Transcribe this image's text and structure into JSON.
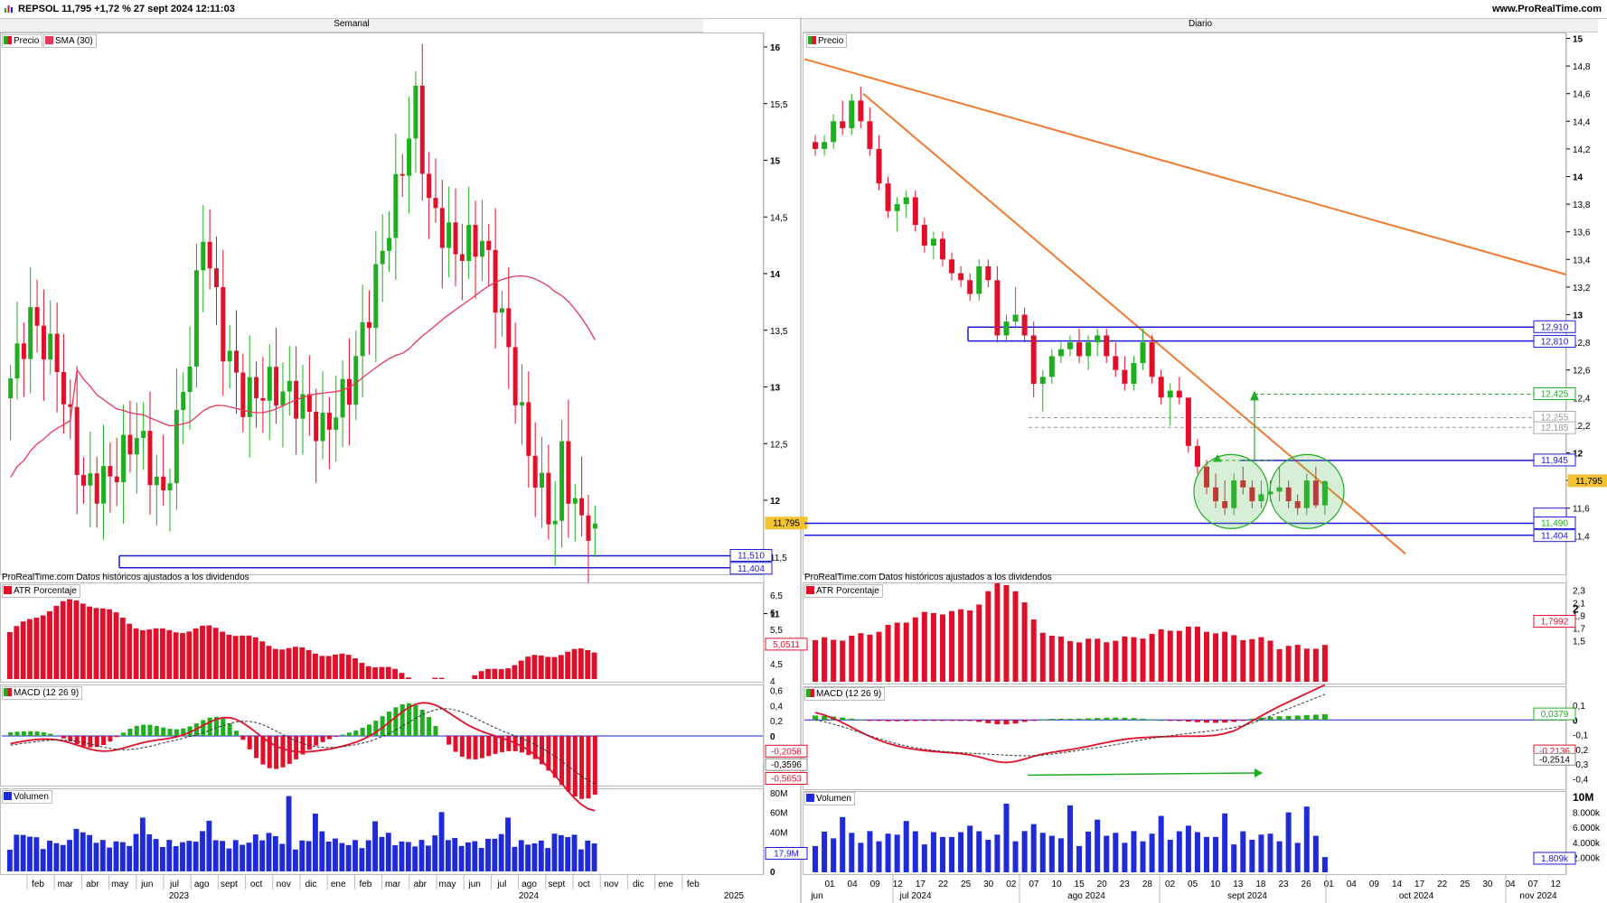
{
  "header": {
    "title": "REPSOL 11,795 +1,72 % 27 sept 2024 12:11:03",
    "brand": "www.ProRealTime.com"
  },
  "left": {
    "title": "Semanal",
    "legend": [
      "Precio",
      "SMA (30)"
    ],
    "source_note": "ProRealTime.com Datos históricos ajustados a los dividendos",
    "price_axis": [
      "16",
      "15,5",
      "15",
      "14,5",
      "14",
      "13,5",
      "13",
      "12,5",
      "12",
      "11,5",
      "11"
    ],
    "price_tags": {
      "last": "11,795",
      "s1": "11,510",
      "s2": "11,404"
    },
    "atr": {
      "label": "ATR Porcentaje",
      "axis": [
        "6,5",
        "6",
        "5,5",
        "5",
        "4,5",
        "4"
      ],
      "value": "5,0511"
    },
    "macd": {
      "label": "MACD (12 26 9)",
      "axis": [
        "0,6",
        "0,4",
        "0,2",
        "0",
        "-0,2",
        "-0,4"
      ],
      "values": [
        "-0,2058",
        "-0,3596",
        "-0,5653"
      ]
    },
    "volume": {
      "label": "Volumen",
      "axis": [
        "80M",
        "60M",
        "40M",
        "0"
      ],
      "value": "17,9M"
    },
    "x_labels": [
      "feb",
      "mar",
      "abr",
      "may",
      "jun",
      "jul",
      "ago",
      "sept",
      "oct",
      "nov",
      "dic",
      "ene",
      "feb",
      "mar",
      "abr",
      "may",
      "jun",
      "jul",
      "ago",
      "sept",
      "oct",
      "nov",
      "dic",
      "ene",
      "feb"
    ],
    "years": [
      "2023",
      "2024",
      "2025"
    ]
  },
  "right": {
    "title": "Diario",
    "legend": [
      "Precio"
    ],
    "source_note": "ProRealTime.com Datos históricos ajustados a los dividendos",
    "price_axis": [
      "15",
      "14,8",
      "14,6",
      "14,4",
      "14,2",
      "14",
      "13,8",
      "13,6",
      "13,4",
      "13,2",
      "13",
      "12,8",
      "12,6",
      "12,4",
      "12,2",
      "12",
      "11,8",
      "11,6",
      "11,4"
    ],
    "price_tags": {
      "r1": "12,910",
      "r2": "12,810",
      "t1": "12,425",
      "g1": "12,255",
      "g2": "12,185",
      "r3": "11,945",
      "last": "11,795",
      "s1": "11,490",
      "s2": "11,404"
    },
    "atr": {
      "label": "ATR Porcentaje",
      "axis": [
        "2,3",
        "2,1",
        "1,9",
        "1,7",
        "1,5",
        "2"
      ],
      "value": "1,7992"
    },
    "macd": {
      "label": "MACD (12 26 9)",
      "axis": [
        "0,1",
        "0",
        "-0,1",
        "-0,2",
        "-0,3",
        "-0,4"
      ],
      "values": [
        "0,0379",
        "-0,2136",
        "-0,2514"
      ]
    },
    "volume": {
      "label": "Volumen",
      "axis": [
        "10M",
        "8.000k",
        "6.000k",
        "4.000k",
        "2.000k"
      ],
      "value": "1,809k"
    },
    "x_labels": [
      "01",
      "04",
      "09",
      "12",
      "17",
      "22",
      "25",
      "30",
      "02",
      "07",
      "10",
      "15",
      "20",
      "23",
      "28",
      "02",
      "05",
      "10",
      "13",
      "18",
      "23",
      "26",
      "01",
      "04",
      "09",
      "14",
      "17",
      "22",
      "25",
      "30",
      "04",
      "07",
      "12"
    ],
    "months": [
      "jun",
      "jul 2024",
      "ago 2024",
      "sept 2024",
      "oct 2024",
      "nov 2024"
    ]
  },
  "colors": {
    "up": "#1fae1f",
    "down": "#e0102a",
    "sma": "#e8365a",
    "level": "#1a1ad6",
    "trend": "#f07a30",
    "macd_signal": "#333333",
    "volume": "#1f2ad8"
  },
  "chart_data": [
    {
      "type": "candlestick",
      "title": "Semanal",
      "series": [
        {
          "name": "Precio"
        },
        {
          "name": "SMA (30)"
        }
      ],
      "ylim": [
        11,
        16
      ],
      "levels": [
        11.51,
        11.404
      ],
      "last": 11.795,
      "ohlc_approx": [
        [
          12.95,
          13.5,
          12.8,
          13.3
        ],
        [
          13.3,
          13.9,
          13.2,
          13.8
        ],
        [
          13.8,
          13.9,
          13.0,
          13.1
        ],
        [
          13.1,
          13.4,
          12.0,
          12.3
        ],
        [
          12.3,
          12.8,
          11.9,
          12.6
        ],
        [
          12.6,
          13.2,
          12.4,
          13.0
        ],
        [
          13.0,
          13.2,
          12.0,
          12.2
        ],
        [
          12.2,
          12.3,
          11.7,
          11.9
        ],
        [
          11.9,
          12.4,
          11.8,
          12.3
        ],
        [
          12.3,
          12.5,
          11.9,
          12.0
        ],
        [
          12.0,
          12.6,
          11.8,
          12.5
        ],
        [
          12.5,
          12.8,
          12.1,
          12.2
        ],
        [
          12.2,
          12.4,
          11.9,
          12.0
        ],
        [
          12.0,
          12.9,
          11.9,
          12.8
        ],
        [
          12.8,
          13.1,
          12.5,
          13.0
        ],
        [
          13.0,
          13.3,
          12.7,
          12.8
        ],
        [
          12.8,
          13.6,
          12.7,
          13.5
        ],
        [
          13.5,
          14.0,
          13.3,
          13.9
        ],
        [
          13.9,
          14.8,
          13.8,
          14.6
        ],
        [
          14.6,
          14.9,
          13.9,
          14.0
        ],
        [
          14.0,
          14.0,
          13.3,
          13.5
        ],
        [
          13.5,
          13.8,
          13.0,
          13.1
        ],
        [
          13.1,
          13.3,
          12.7,
          12.9
        ],
        [
          12.9,
          13.0,
          12.6,
          12.8
        ],
        [
          12.8,
          13.3,
          12.7,
          13.2
        ],
        [
          13.2,
          13.3,
          12.8,
          12.9
        ],
        [
          12.9,
          13.0,
          12.5,
          12.6
        ],
        [
          12.6,
          12.9,
          12.4,
          12.8
        ],
        [
          12.8,
          13.1,
          12.7,
          13.0
        ],
        [
          13.0,
          13.5,
          12.9,
          13.4
        ],
        [
          13.4,
          14.0,
          13.3,
          13.9
        ],
        [
          13.9,
          14.6,
          13.8,
          14.5
        ],
        [
          14.5,
          15.0,
          14.3,
          14.9
        ],
        [
          14.9,
          15.7,
          14.8,
          15.6
        ],
        [
          15.6,
          15.6,
          14.6,
          14.7
        ],
        [
          14.7,
          14.9,
          14.2,
          14.4
        ],
        [
          14.4,
          14.6,
          13.9,
          14.0
        ],
        [
          14.0,
          14.6,
          13.9,
          14.5
        ],
        [
          14.5,
          14.8,
          13.8,
          13.9
        ],
        [
          13.9,
          14.3,
          13.8,
          14.2
        ],
        [
          14.2,
          14.6,
          13.5,
          13.6
        ],
        [
          13.6,
          13.8,
          13.2,
          13.3
        ],
        [
          13.3,
          13.4,
          12.7,
          12.8
        ],
        [
          12.8,
          13.0,
          12.4,
          12.5
        ],
        [
          12.5,
          12.9,
          12.1,
          12.7
        ],
        [
          12.7,
          12.8,
          12.2,
          12.3
        ],
        [
          12.3,
          12.4,
          11.7,
          11.8
        ],
        [
          11.8,
          12.0,
          11.6,
          11.7
        ],
        [
          11.7,
          11.9,
          11.5,
          11.795
        ]
      ]
    },
    {
      "type": "candlestick",
      "title": "Diario",
      "series": [
        {
          "name": "Precio"
        }
      ],
      "ylim": [
        11.3,
        15.1
      ],
      "levels": [
        12.91,
        12.81,
        12.425,
        12.255,
        12.185,
        11.945,
        11.49,
        11.404
      ],
      "last": 11.795,
      "ohlc_approx": [
        [
          14.25,
          14.3,
          14.15,
          14.2
        ],
        [
          14.2,
          14.3,
          14.15,
          14.25
        ],
        [
          14.25,
          14.45,
          14.2,
          14.4
        ],
        [
          14.4,
          14.55,
          14.3,
          14.35
        ],
        [
          14.35,
          14.6,
          14.3,
          14.55
        ],
        [
          14.55,
          14.65,
          14.35,
          14.4
        ],
        [
          14.4,
          14.5,
          14.15,
          14.2
        ],
        [
          14.2,
          14.3,
          13.9,
          13.95
        ],
        [
          13.95,
          14.0,
          13.7,
          13.75
        ],
        [
          13.75,
          13.85,
          13.6,
          13.8
        ],
        [
          13.8,
          13.9,
          13.7,
          13.85
        ],
        [
          13.85,
          13.9,
          13.6,
          13.65
        ],
        [
          13.65,
          13.7,
          13.45,
          13.5
        ],
        [
          13.5,
          13.6,
          13.4,
          13.55
        ],
        [
          13.55,
          13.6,
          13.35,
          13.4
        ],
        [
          13.4,
          13.45,
          13.25,
          13.3
        ],
        [
          13.3,
          13.35,
          13.2,
          13.25
        ],
        [
          13.25,
          13.3,
          13.1,
          13.15
        ],
        [
          13.15,
          13.4,
          13.1,
          13.35
        ],
        [
          13.35,
          13.4,
          13.2,
          13.25
        ],
        [
          13.25,
          13.35,
          12.8,
          12.85
        ],
        [
          12.85,
          13.0,
          12.8,
          12.95
        ],
        [
          12.95,
          13.2,
          12.9,
          13.0
        ],
        [
          13.0,
          13.05,
          12.8,
          12.85
        ],
        [
          12.85,
          12.95,
          12.4,
          12.5
        ],
        [
          12.5,
          12.6,
          12.3,
          12.55
        ],
        [
          12.55,
          12.75,
          12.5,
          12.7
        ],
        [
          12.7,
          12.8,
          12.65,
          12.75
        ],
        [
          12.75,
          12.85,
          12.7,
          12.8
        ],
        [
          12.8,
          12.9,
          12.65,
          12.7
        ],
        [
          12.7,
          12.85,
          12.6,
          12.8
        ],
        [
          12.8,
          12.9,
          12.7,
          12.85
        ],
        [
          12.85,
          12.9,
          12.65,
          12.7
        ],
        [
          12.7,
          12.8,
          12.55,
          12.6
        ],
        [
          12.6,
          12.7,
          12.45,
          12.5
        ],
        [
          12.5,
          12.7,
          12.45,
          12.65
        ],
        [
          12.65,
          12.9,
          12.6,
          12.8
        ],
        [
          12.8,
          12.85,
          12.5,
          12.55
        ],
        [
          12.55,
          12.6,
          12.35,
          12.4
        ],
        [
          12.4,
          12.5,
          12.2,
          12.45
        ],
        [
          12.45,
          12.55,
          12.35,
          12.4
        ],
        [
          12.4,
          12.4,
          12.0,
          12.05
        ],
        [
          12.05,
          12.1,
          11.85,
          11.9
        ],
        [
          11.9,
          11.95,
          11.7,
          11.75
        ],
        [
          11.75,
          11.85,
          11.6,
          11.65
        ],
        [
          11.65,
          11.8,
          11.55,
          11.6
        ],
        [
          11.6,
          11.85,
          11.55,
          11.8
        ],
        [
          11.8,
          11.9,
          11.7,
          11.75
        ],
        [
          11.75,
          11.8,
          11.6,
          11.65
        ],
        [
          11.65,
          11.8,
          11.6,
          11.7
        ],
        [
          11.7,
          11.8,
          11.65,
          11.72
        ],
        [
          11.72,
          11.9,
          11.65,
          11.75
        ],
        [
          11.75,
          11.8,
          11.6,
          11.65
        ],
        [
          11.65,
          11.7,
          11.55,
          11.6
        ],
        [
          11.6,
          11.85,
          11.55,
          11.8
        ],
        [
          11.8,
          11.9,
          11.6,
          11.62
        ],
        [
          11.62,
          11.8,
          11.55,
          11.795
        ]
      ]
    }
  ]
}
